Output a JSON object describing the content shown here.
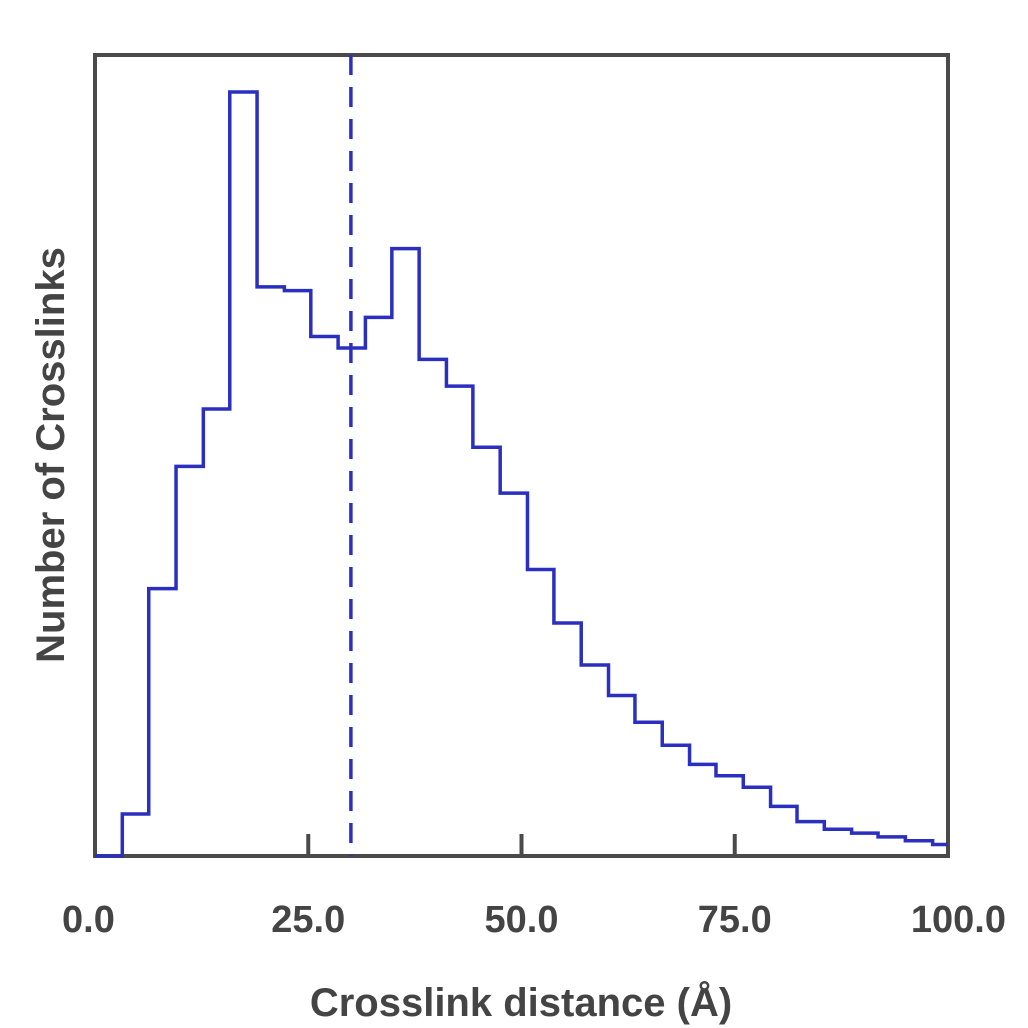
{
  "chart_data": {
    "type": "histogram",
    "title": "",
    "xlabel": "Crosslink distance (Å)",
    "ylabel": "Number of Crosslinks",
    "xlim": [
      0,
      100
    ],
    "ylim": [
      0,
      100
    ],
    "x_ticks": [
      "0.0",
      "25.0",
      "50.0",
      "75.0",
      "100.0"
    ],
    "x_tick_values": [
      0,
      25,
      50,
      75,
      100
    ],
    "y_ticks_shown": false,
    "grid": false,
    "bin_edges": [
      0,
      3.2,
      6.3,
      9.5,
      12.7,
      15.8,
      19.0,
      22.2,
      25.3,
      28.5,
      31.7,
      34.8,
      38.0,
      41.2,
      44.3,
      47.5,
      50.7,
      53.8,
      57.0,
      60.2,
      63.3,
      66.5,
      69.7,
      72.8,
      76.0,
      79.2,
      82.3,
      85.5,
      88.7,
      91.8,
      95.0,
      98.2,
      100
    ],
    "counts": [
      0,
      5.5,
      35,
      51,
      58.5,
      100,
      74.5,
      74,
      68,
      66.5,
      70.5,
      79.5,
      65,
      61.5,
      53.5,
      47.5,
      37.5,
      30.5,
      25,
      21,
      17.5,
      14.5,
      12,
      10.5,
      9,
      6.5,
      4.5,
      3.5,
      3,
      2.5,
      2,
      1.5
    ],
    "reference_line": {
      "x": 30,
      "style": "dashed"
    },
    "colors": {
      "series": "#2b2fbf",
      "axes": "#4a4a4a",
      "text": "#444444",
      "background": "#ffffff"
    }
  }
}
